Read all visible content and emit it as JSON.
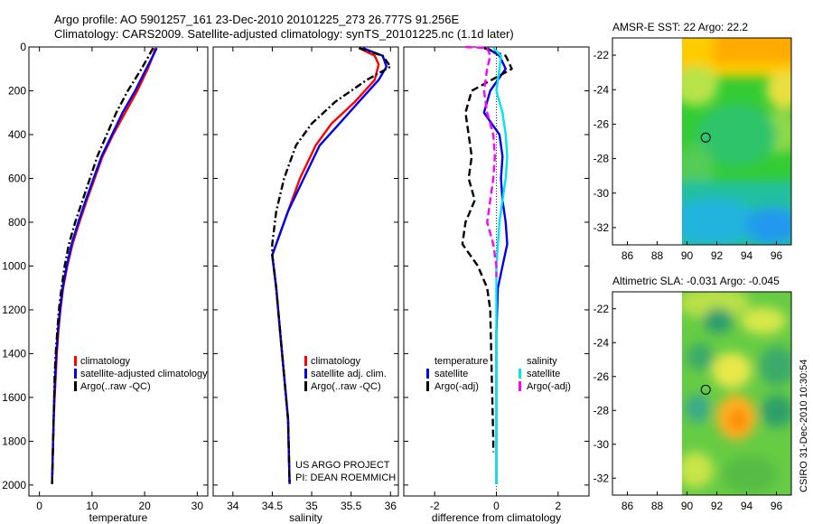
{
  "header": {
    "line1": "Argo profile: AO 5901257_161 23-Dec-2010 20101225_273 26.777S 91.256E",
    "line2": "Climatology: CARS2009. Satellite-adjusted climatology: synTS_20101225.nc (1.1d later)"
  },
  "side_label": "CSIRO 31-Dec-2010 10:30:54",
  "colors": {
    "red": "#ff0000",
    "blue": "#0000ee",
    "black": "#000000",
    "cyan": "#00e5ee",
    "magenta": "#ff00ff"
  },
  "chart_data": [
    {
      "id": "temperature",
      "type": "line",
      "xlabel": "temperature",
      "ylabel": "",
      "xlim": [
        -2,
        32
      ],
      "ylim": [
        2050,
        0
      ],
      "xticks": [
        0,
        10,
        20,
        30
      ],
      "yticks": [
        0,
        200,
        400,
        600,
        800,
        1000,
        1200,
        1400,
        1600,
        1800,
        2000
      ],
      "series": [
        {
          "name": "climatology",
          "color": "#ff0000",
          "dash": "",
          "points": [
            [
              22.0,
              5
            ],
            [
              21.6,
              40
            ],
            [
              20.6,
              100
            ],
            [
              18.6,
              200
            ],
            [
              16.3,
              300
            ],
            [
              14.0,
              400
            ],
            [
              12.0,
              500
            ],
            [
              10.5,
              600
            ],
            [
              9.0,
              700
            ],
            [
              7.6,
              800
            ],
            [
              6.3,
              900
            ],
            [
              5.3,
              1000
            ],
            [
              4.5,
              1100
            ],
            [
              4.0,
              1200
            ],
            [
              3.6,
              1300
            ],
            [
              3.3,
              1400
            ],
            [
              3.1,
              1500
            ],
            [
              2.9,
              1600
            ],
            [
              2.7,
              1700
            ],
            [
              2.6,
              1800
            ],
            [
              2.5,
              1900
            ],
            [
              2.4,
              1995
            ]
          ]
        },
        {
          "name": "satellite-adjusted climatology",
          "color": "#0000ee",
          "dash": "",
          "points": [
            [
              22.3,
              5
            ],
            [
              21.6,
              40
            ],
            [
              20.3,
              100
            ],
            [
              18.2,
              200
            ],
            [
              15.8,
              300
            ],
            [
              13.8,
              400
            ],
            [
              11.8,
              500
            ],
            [
              10.3,
              600
            ],
            [
              8.8,
              700
            ],
            [
              7.4,
              800
            ],
            [
              6.1,
              900
            ],
            [
              5.2,
              1000
            ],
            [
              4.4,
              1100
            ],
            [
              3.9,
              1200
            ],
            [
              3.5,
              1300
            ],
            [
              3.2,
              1400
            ],
            [
              3.0,
              1500
            ],
            [
              2.8,
              1600
            ],
            [
              2.7,
              1700
            ],
            [
              2.6,
              1800
            ],
            [
              2.5,
              1900
            ],
            [
              2.4,
              1995
            ]
          ]
        },
        {
          "name": "Argo(..raw -QC)",
          "color": "#000000",
          "dash": "8,3,2,3",
          "points": [
            [
              21.6,
              5
            ],
            [
              20.8,
              40
            ],
            [
              19.4,
              100
            ],
            [
              16.8,
              200
            ],
            [
              14.6,
              300
            ],
            [
              12.8,
              400
            ],
            [
              11.0,
              500
            ],
            [
              9.6,
              600
            ],
            [
              8.2,
              700
            ],
            [
              6.8,
              800
            ],
            [
              5.6,
              900
            ],
            [
              4.8,
              1000
            ],
            [
              4.2,
              1100
            ],
            [
              3.7,
              1200
            ],
            [
              3.4,
              1300
            ],
            [
              3.1,
              1400
            ],
            [
              2.9,
              1500
            ],
            [
              2.8,
              1600
            ],
            [
              2.7,
              1700
            ],
            [
              2.6,
              1800
            ],
            [
              2.5,
              1900
            ],
            [
              2.4,
              1995
            ]
          ]
        }
      ],
      "legend": [
        {
          "label": "climatology",
          "color": "#ff0000"
        },
        {
          "label": "satellite-adjusted climatology",
          "color": "#0000ee"
        },
        {
          "label": "Argo(..raw -QC)",
          "color": "#000000"
        }
      ]
    },
    {
      "id": "salinity",
      "type": "line",
      "xlabel": "salinity",
      "ylabel": "",
      "xlim": [
        33.75,
        36.1
      ],
      "ylim": [
        2050,
        0
      ],
      "xticks": [
        34,
        34.5,
        35,
        35.5,
        36
      ],
      "yticks": [
        0,
        200,
        400,
        600,
        800,
        1000,
        1200,
        1400,
        1600,
        1800,
        2000
      ],
      "series": [
        {
          "name": "climatology",
          "color": "#ff0000",
          "dash": "",
          "points": [
            [
              35.6,
              5
            ],
            [
              35.8,
              40
            ],
            [
              35.85,
              80
            ],
            [
              35.8,
              150
            ],
            [
              35.55,
              250
            ],
            [
              35.25,
              350
            ],
            [
              35.05,
              450
            ],
            [
              34.85,
              600
            ],
            [
              34.7,
              750
            ],
            [
              34.55,
              900
            ],
            [
              34.5,
              950
            ],
            [
              34.55,
              1100
            ],
            [
              34.6,
              1300
            ],
            [
              34.65,
              1500
            ],
            [
              34.7,
              1700
            ],
            [
              34.72,
              1995
            ]
          ]
        },
        {
          "name": "satellite adj. clim.",
          "color": "#0000ee",
          "dash": "",
          "points": [
            [
              35.65,
              5
            ],
            [
              35.9,
              40
            ],
            [
              35.95,
              90
            ],
            [
              35.85,
              150
            ],
            [
              35.6,
              250
            ],
            [
              35.35,
              350
            ],
            [
              35.1,
              450
            ],
            [
              34.9,
              600
            ],
            [
              34.7,
              750
            ],
            [
              34.55,
              900
            ],
            [
              34.5,
              950
            ],
            [
              34.55,
              1100
            ],
            [
              34.6,
              1300
            ],
            [
              34.65,
              1500
            ],
            [
              34.7,
              1700
            ],
            [
              34.72,
              1995
            ]
          ]
        },
        {
          "name": "Argo(..raw -QC)",
          "color": "#000000",
          "dash": "8,3,2,3",
          "points": [
            [
              35.6,
              5
            ],
            [
              35.9,
              40
            ],
            [
              36.0,
              90
            ],
            [
              35.7,
              150
            ],
            [
              35.3,
              250
            ],
            [
              35.0,
              350
            ],
            [
              34.8,
              450
            ],
            [
              34.65,
              600
            ],
            [
              34.55,
              750
            ],
            [
              34.5,
              900
            ],
            [
              34.5,
              950
            ],
            [
              34.55,
              1100
            ],
            [
              34.6,
              1300
            ],
            [
              34.65,
              1500
            ],
            [
              34.7,
              1700
            ],
            [
              34.72,
              1995
            ]
          ]
        }
      ],
      "legend": [
        {
          "label": "climatology",
          "color": "#ff0000"
        },
        {
          "label": "satellite adj. clim.",
          "color": "#0000ee"
        },
        {
          "label": "Argo(..raw -QC)",
          "color": "#000000"
        }
      ],
      "annotation": [
        "US ARGO PROJECT",
        "PI: DEAN ROEMMICH"
      ]
    },
    {
      "id": "difference",
      "type": "line",
      "xlabel": "difference from climatology",
      "ylabel": "",
      "xlim": [
        -3,
        3
      ],
      "ylim": [
        2050,
        0
      ],
      "xticks": [
        -2,
        0,
        2
      ],
      "yticks": [
        0,
        200,
        400,
        600,
        800,
        1000,
        1200,
        1400,
        1600,
        1800,
        2000
      ],
      "series": [
        {
          "name": "temperature satellite",
          "color": "#0000ee",
          "dash": "",
          "points": [
            [
              -0.3,
              5
            ],
            [
              0.1,
              40
            ],
            [
              0.3,
              100
            ],
            [
              -0.2,
              200
            ],
            [
              -0.4,
              300
            ],
            [
              0.1,
              400
            ],
            [
              0.2,
              500
            ],
            [
              0.15,
              600
            ],
            [
              0.2,
              700
            ],
            [
              0.3,
              800
            ],
            [
              0.35,
              900
            ],
            [
              0.2,
              1000
            ],
            [
              0.05,
              1100
            ],
            [
              0,
              1300
            ],
            [
              0,
              1995
            ]
          ]
        },
        {
          "name": "Argo(-adj)",
          "color": "#000000",
          "dash": "8,4",
          "points": [
            [
              -0.4,
              5
            ],
            [
              0.3,
              40
            ],
            [
              0.5,
              100
            ],
            [
              -0.8,
              200
            ],
            [
              -1.0,
              300
            ],
            [
              -0.9,
              400
            ],
            [
              -0.8,
              500
            ],
            [
              -0.9,
              600
            ],
            [
              -0.7,
              700
            ],
            [
              -1.0,
              800
            ],
            [
              -1.1,
              900
            ],
            [
              -0.6,
              1000
            ],
            [
              -0.3,
              1100
            ],
            [
              -0.2,
              1200
            ],
            [
              -0.15,
              1500
            ],
            [
              -0.1,
              1800
            ],
            [
              -0.1,
              1850
            ]
          ]
        },
        {
          "name": "salinity satellite",
          "color": "#00e5ee",
          "dash": "",
          "points": [
            [
              -0.1,
              5
            ],
            [
              0.15,
              40
            ],
            [
              0.1,
              100
            ],
            [
              0.0,
              200
            ],
            [
              0.2,
              300
            ],
            [
              0.3,
              400
            ],
            [
              0.35,
              500
            ],
            [
              0.3,
              600
            ],
            [
              0.2,
              700
            ],
            [
              0.1,
              800
            ],
            [
              0.05,
              900
            ],
            [
              0.0,
              1000
            ],
            [
              0.0,
              1200
            ],
            [
              0.0,
              1995
            ]
          ]
        },
        {
          "name": "Argo(-adj) salinity",
          "color": "#ff00ff",
          "dash": "8,4",
          "points": [
            [
              -1.0,
              0
            ],
            [
              -0.3,
              5
            ],
            [
              -0.2,
              40
            ],
            [
              -0.3,
              100
            ],
            [
              -0.4,
              200
            ],
            [
              -0.3,
              300
            ],
            [
              -0.1,
              400
            ],
            [
              -0.05,
              500
            ],
            [
              -0.1,
              600
            ],
            [
              -0.2,
              700
            ],
            [
              -0.3,
              800
            ],
            [
              -0.1,
              900
            ],
            [
              0.0,
              1000
            ],
            [
              0.0,
              1050
            ]
          ]
        }
      ],
      "legend": {
        "col1_title": "temperature",
        "col2_title": "salinity",
        "items": [
          {
            "label": "satellite",
            "color": "#0000ee",
            "col": 1
          },
          {
            "label": "Argo(-adj)",
            "color": "#000000",
            "col": 1
          },
          {
            "label": "satellite",
            "color": "#00e5ee",
            "col": 2
          },
          {
            "label": "Argo(-adj)",
            "color": "#ff00ff",
            "col": 2
          }
        ]
      }
    },
    {
      "id": "sst_map",
      "type": "heatmap",
      "title": "AMSR-E SST: 22 Argo: 22.2",
      "xlim": [
        85,
        97
      ],
      "ylim": [
        -33,
        -21
      ],
      "xticks": [
        86,
        88,
        90,
        92,
        94,
        96
      ],
      "yticks": [
        -22,
        -24,
        -26,
        -28,
        -30,
        -32
      ],
      "data_extent_lon": [
        90,
        97
      ],
      "marker": [
        91.256,
        -26.777
      ]
    },
    {
      "id": "sla_map",
      "type": "heatmap",
      "title": "Altimetric SLA: -0.031 Argo: -0.045",
      "xlim": [
        85,
        97
      ],
      "ylim": [
        -33,
        -21
      ],
      "xticks": [
        86,
        88,
        90,
        92,
        94,
        96
      ],
      "yticks": [
        -22,
        -24,
        -26,
        -28,
        -30,
        -32
      ],
      "data_extent_lon": [
        90,
        97
      ],
      "marker": [
        91.256,
        -26.777
      ]
    }
  ]
}
